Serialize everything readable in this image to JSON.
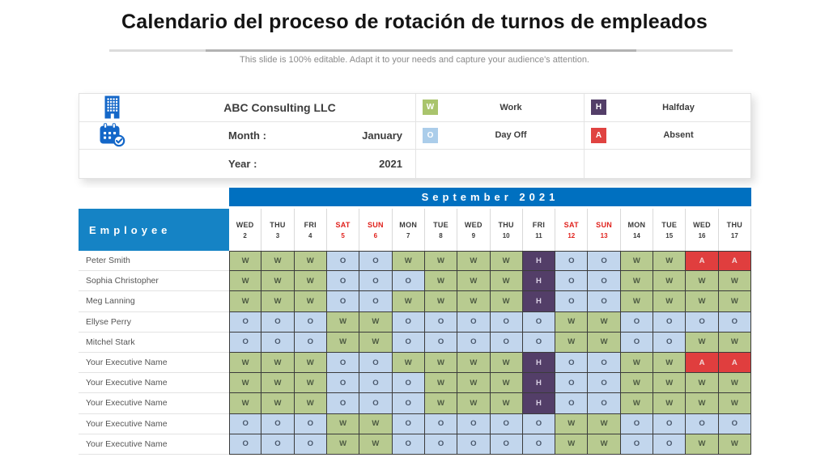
{
  "title": "Calendario del proceso de rotación de turnos de empleados",
  "subtitle": "This slide is 100% editable. Adapt it to your needs and capture your audience's attention.",
  "info": {
    "company": "ABC Consulting LLC",
    "month_label": "Month :",
    "month_value": "January",
    "year_label": "Year   :",
    "year_value": "2021"
  },
  "legend": [
    {
      "code": "W",
      "label": "Work",
      "color": "#a9c46c"
    },
    {
      "code": "H",
      "label": "Halfday",
      "color": "#533e68"
    },
    {
      "code": "O",
      "label": "Day Off",
      "color": "#abcdea"
    },
    {
      "code": "A",
      "label": "Absent",
      "color": "#e04341"
    }
  ],
  "calendar": {
    "banner": "September 2021",
    "employee_header": "Employee",
    "days": [
      {
        "name": "WED",
        "num": "2",
        "weekend": false
      },
      {
        "name": "THU",
        "num": "3",
        "weekend": false
      },
      {
        "name": "FRI",
        "num": "4",
        "weekend": false
      },
      {
        "name": "SAT",
        "num": "5",
        "weekend": true
      },
      {
        "name": "SUN",
        "num": "6",
        "weekend": true
      },
      {
        "name": "MON",
        "num": "7",
        "weekend": false
      },
      {
        "name": "TUE",
        "num": "8",
        "weekend": false
      },
      {
        "name": "WED",
        "num": "9",
        "weekend": false
      },
      {
        "name": "THU",
        "num": "10",
        "weekend": false
      },
      {
        "name": "FRI",
        "num": "11",
        "weekend": false
      },
      {
        "name": "SAT",
        "num": "12",
        "weekend": true
      },
      {
        "name": "SUN",
        "num": "13",
        "weekend": true
      },
      {
        "name": "MON",
        "num": "14",
        "weekend": false
      },
      {
        "name": "TUE",
        "num": "15",
        "weekend": false
      },
      {
        "name": "WED",
        "num": "16",
        "weekend": false
      },
      {
        "name": "THU",
        "num": "17",
        "weekend": false
      }
    ],
    "rows": [
      {
        "name": "Peter Smith",
        "cells": [
          "W",
          "W",
          "W",
          "O",
          "O",
          "W",
          "W",
          "W",
          "W",
          "H",
          "O",
          "O",
          "W",
          "W",
          "A",
          "A"
        ]
      },
      {
        "name": "Sophia Christopher",
        "cells": [
          "W",
          "W",
          "W",
          "O",
          "O",
          "O",
          "W",
          "W",
          "W",
          "H",
          "O",
          "O",
          "W",
          "W",
          "W",
          "W"
        ]
      },
      {
        "name": "Meg Lanning",
        "cells": [
          "W",
          "W",
          "W",
          "O",
          "O",
          "W",
          "W",
          "W",
          "W",
          "H",
          "O",
          "O",
          "W",
          "W",
          "W",
          "W"
        ]
      },
      {
        "name": "Ellyse Perry",
        "cells": [
          "O",
          "O",
          "O",
          "W",
          "W",
          "O",
          "O",
          "O",
          "O",
          "O",
          "W",
          "W",
          "O",
          "O",
          "O",
          "O"
        ]
      },
      {
        "name": "Mitchel Stark",
        "cells": [
          "O",
          "O",
          "O",
          "W",
          "W",
          "O",
          "O",
          "O",
          "O",
          "O",
          "W",
          "W",
          "O",
          "O",
          "W",
          "W"
        ]
      },
      {
        "name": "Your Executive Name",
        "cells": [
          "W",
          "W",
          "W",
          "O",
          "O",
          "W",
          "W",
          "W",
          "W",
          "H",
          "O",
          "O",
          "W",
          "W",
          "A",
          "A"
        ]
      },
      {
        "name": "Your Executive Name",
        "cells": [
          "W",
          "W",
          "W",
          "O",
          "O",
          "O",
          "W",
          "W",
          "W",
          "H",
          "O",
          "O",
          "W",
          "W",
          "W",
          "W"
        ]
      },
      {
        "name": "Your Executive Name",
        "cells": [
          "W",
          "W",
          "W",
          "O",
          "O",
          "O",
          "W",
          "W",
          "W",
          "H",
          "O",
          "O",
          "W",
          "W",
          "W",
          "W"
        ]
      },
      {
        "name": "Your Executive Name",
        "cells": [
          "O",
          "O",
          "O",
          "W",
          "W",
          "O",
          "O",
          "O",
          "O",
          "O",
          "W",
          "W",
          "O",
          "O",
          "O",
          "O"
        ]
      },
      {
        "name": "Your Executive Name",
        "cells": [
          "O",
          "O",
          "O",
          "W",
          "W",
          "O",
          "O",
          "O",
          "O",
          "O",
          "W",
          "W",
          "O",
          "O",
          "W",
          "W"
        ]
      }
    ]
  },
  "colors": {
    "banner_blue": "#0070c0",
    "employee_header_blue": "#1583c5",
    "weekend_red": "#e0211c",
    "icon_blue": "#1467c8",
    "status": {
      "W": {
        "bg": "#b8cb90",
        "text": "#4d5a42"
      },
      "O": {
        "bg": "#c2d6ed",
        "text": "#49576b"
      },
      "H": {
        "bg": "#533e68",
        "text": "#d9d0e4"
      },
      "A": {
        "bg": "#e03e3e",
        "text": "#f2d7d7"
      }
    }
  }
}
